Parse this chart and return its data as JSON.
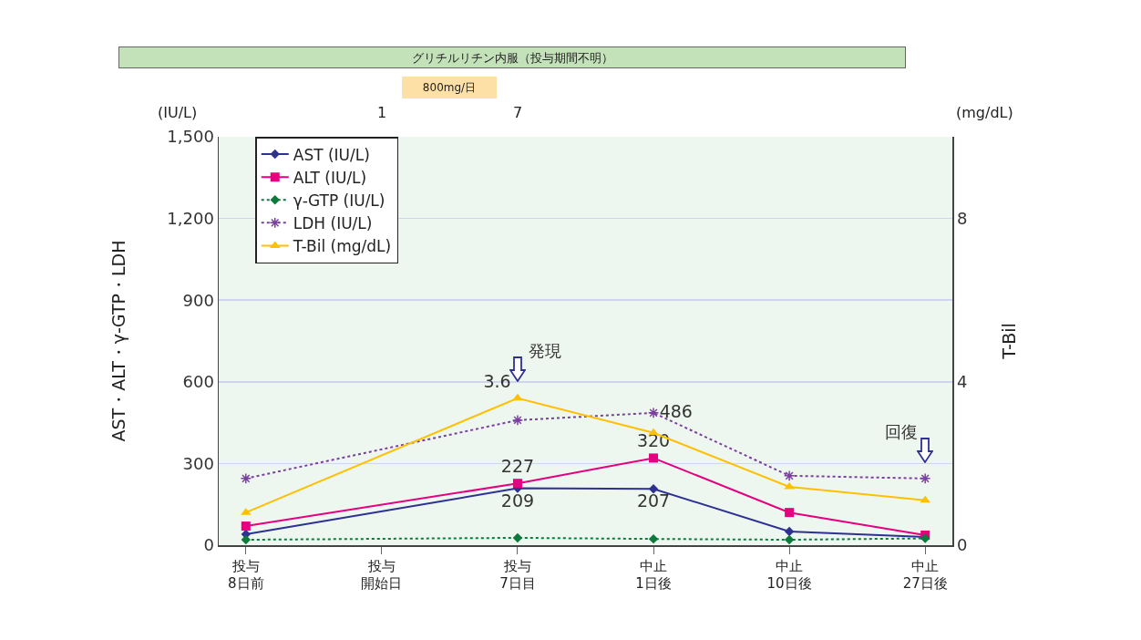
{
  "chart_data": {
    "type": "line",
    "categories": [
      "投与8日前",
      "投与開始日",
      "投与7日目",
      "中止1日後",
      "中止10日後",
      "中止27日後"
    ],
    "ylim": [
      0,
      1500
    ],
    "yticks": [
      0,
      300,
      600,
      900,
      {
        "value": 1200,
        "label": "1,200"
      },
      {
        "value": 1500,
        "label": "1,500"
      }
    ],
    "y2lim": [
      0,
      10
    ],
    "y2ticks": [
      0,
      4,
      8
    ],
    "ylabel": "AST・ALT・γ-GTP・LDH",
    "y2label": "T-Bil",
    "grid": "y",
    "legend": "top left",
    "series": [
      {
        "name": "AST (IU/L)",
        "color": "#2e3192",
        "marker": "diamond",
        "line_style": "solid",
        "values": [
          40,
          null,
          209,
          207,
          50,
          30
        ],
        "value_labels": [
          null,
          null,
          "209",
          "207",
          null,
          null
        ]
      },
      {
        "name": "ALT (IU/L)",
        "color": "#e4007f",
        "marker": "square",
        "line_style": "solid",
        "values": [
          70,
          null,
          227,
          320,
          120,
          37
        ],
        "value_labels": [
          null,
          null,
          "227",
          "320",
          null,
          null
        ]
      },
      {
        "name": "γ-GTP (IU/L)",
        "color": "#0b7a3b",
        "marker": "diamond",
        "line_style": "dotted",
        "values": [
          20,
          null,
          27,
          23,
          20,
          25
        ]
      },
      {
        "name": "LDH (IU/L)",
        "color": "#7b3fa0",
        "marker": "cross",
        "line_style": "dotted",
        "values": [
          245,
          null,
          459,
          486,
          255,
          245
        ],
        "value_labels": [
          null,
          null,
          null,
          "486",
          null,
          null
        ]
      },
      {
        "name": "T-Bil (mg/dL)",
        "color": "#ffc000",
        "marker": "triangle",
        "line_style": "solid",
        "axis": "y2",
        "values": [
          0.8,
          null,
          3.6,
          2.75,
          1.43,
          1.1
        ],
        "value_labels": [
          null,
          null,
          "3.6",
          null,
          null,
          null
        ]
      }
    ],
    "annotations": [
      "(IU/L)",
      "(mg/dL)",
      "1",
      "7",
      "グリチルリチン内服（投与期間不明）",
      "800mg/日",
      "発現",
      "回復"
    ]
  }
}
